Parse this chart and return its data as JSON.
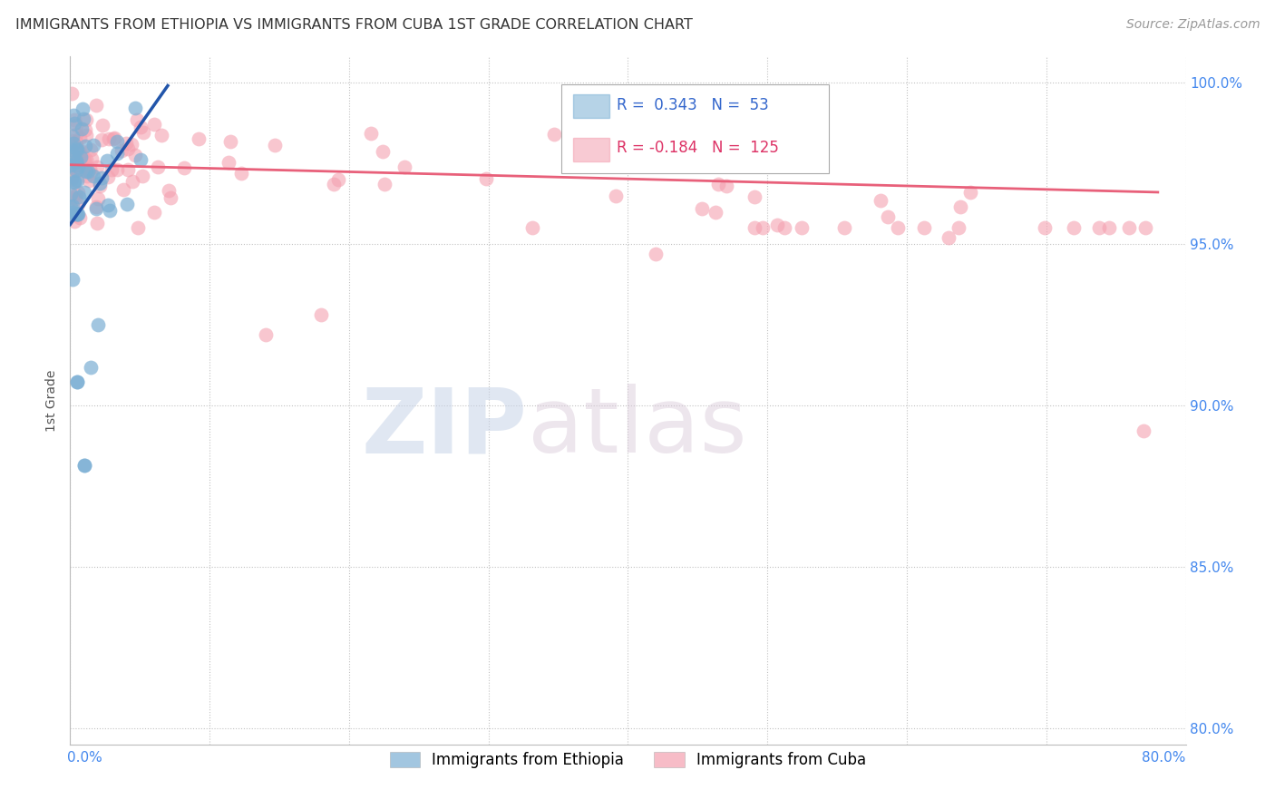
{
  "title": "IMMIGRANTS FROM ETHIOPIA VS IMMIGRANTS FROM CUBA 1ST GRADE CORRELATION CHART",
  "source": "Source: ZipAtlas.com",
  "ylabel": "1st Grade",
  "xlim": [
    0.0,
    0.8
  ],
  "ylim": [
    0.795,
    1.008
  ],
  "yticks": [
    0.8,
    0.85,
    0.9,
    0.95,
    1.0
  ],
  "ytick_labels": [
    "80.0%",
    "85.0%",
    "90.0%",
    "95.0%",
    "100.0%"
  ],
  "blue_R": 0.343,
  "blue_N": 53,
  "pink_R": -0.184,
  "pink_N": 125,
  "blue_color": "#7BAFD4",
  "pink_color": "#F4A0B0",
  "blue_line_color": "#2255AA",
  "pink_line_color": "#E8607A",
  "legend_blue_label": "Immigrants from Ethiopia",
  "legend_pink_label": "Immigrants from Cuba",
  "watermark_zip": "ZIP",
  "watermark_atlas": "atlas",
  "background_color": "#FFFFFF",
  "xticks": [
    0.0,
    0.1,
    0.2,
    0.3,
    0.4,
    0.5,
    0.6,
    0.7,
    0.8
  ]
}
